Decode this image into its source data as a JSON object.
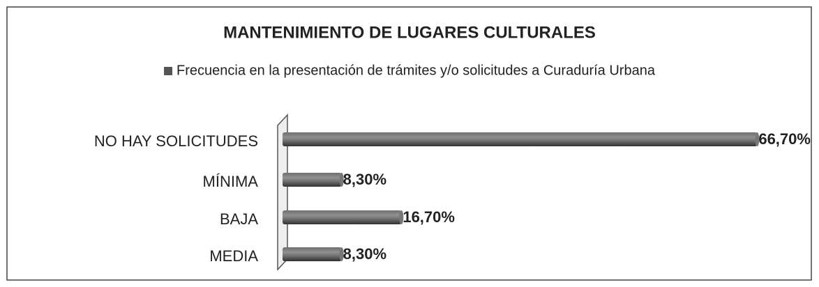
{
  "chart_data": {
    "type": "bar",
    "orientation": "horizontal",
    "title": "MANTENIMIENTO DE LUGARES CULTURALES",
    "categories": [
      "NO HAY SOLICITUDES",
      "MÍNIMA",
      "BAJA",
      "MEDIA"
    ],
    "series": [
      {
        "name": "Frecuencia en la presentación de trámites y/o solicitudes a Curaduría Urbana",
        "color": "#555555",
        "values": [
          66.7,
          8.3,
          16.7,
          8.3
        ],
        "value_labels": [
          "66,70%",
          "8,30%",
          "16,70%",
          "8,30%"
        ]
      }
    ],
    "xlim": [
      0,
      70
    ],
    "legend": "top"
  }
}
